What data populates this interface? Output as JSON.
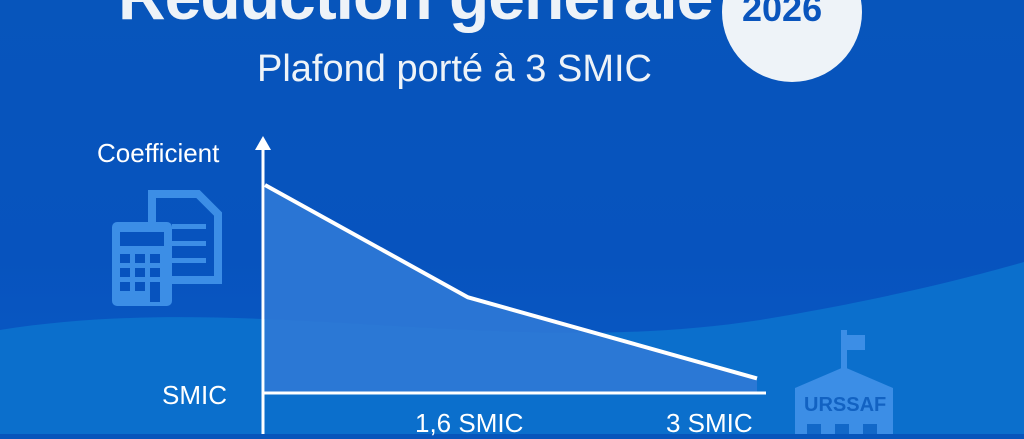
{
  "header": {
    "title": "Réduction générale",
    "year": "2026",
    "subtitle": "Plafond porté à 3 SMIC"
  },
  "icons": {
    "left": "calculator-document-icon",
    "right": "urssaf-building-icon",
    "building_label": "URSSAF"
  },
  "colors": {
    "background": "#0753be",
    "wave": "#0b72cf",
    "area": "#2f79d6",
    "line": "#ffffff",
    "circle": "#eef3f8"
  },
  "chart_data": {
    "type": "area",
    "ylabel": "Coefficient",
    "y_tick_label": "SMIC",
    "x_tick_labels": [
      "1,6 SMIC",
      "3 SMIC"
    ],
    "x": [
      1,
      1.6,
      3
    ],
    "values": [
      1,
      0.46,
      0.07
    ],
    "grid": false
  }
}
